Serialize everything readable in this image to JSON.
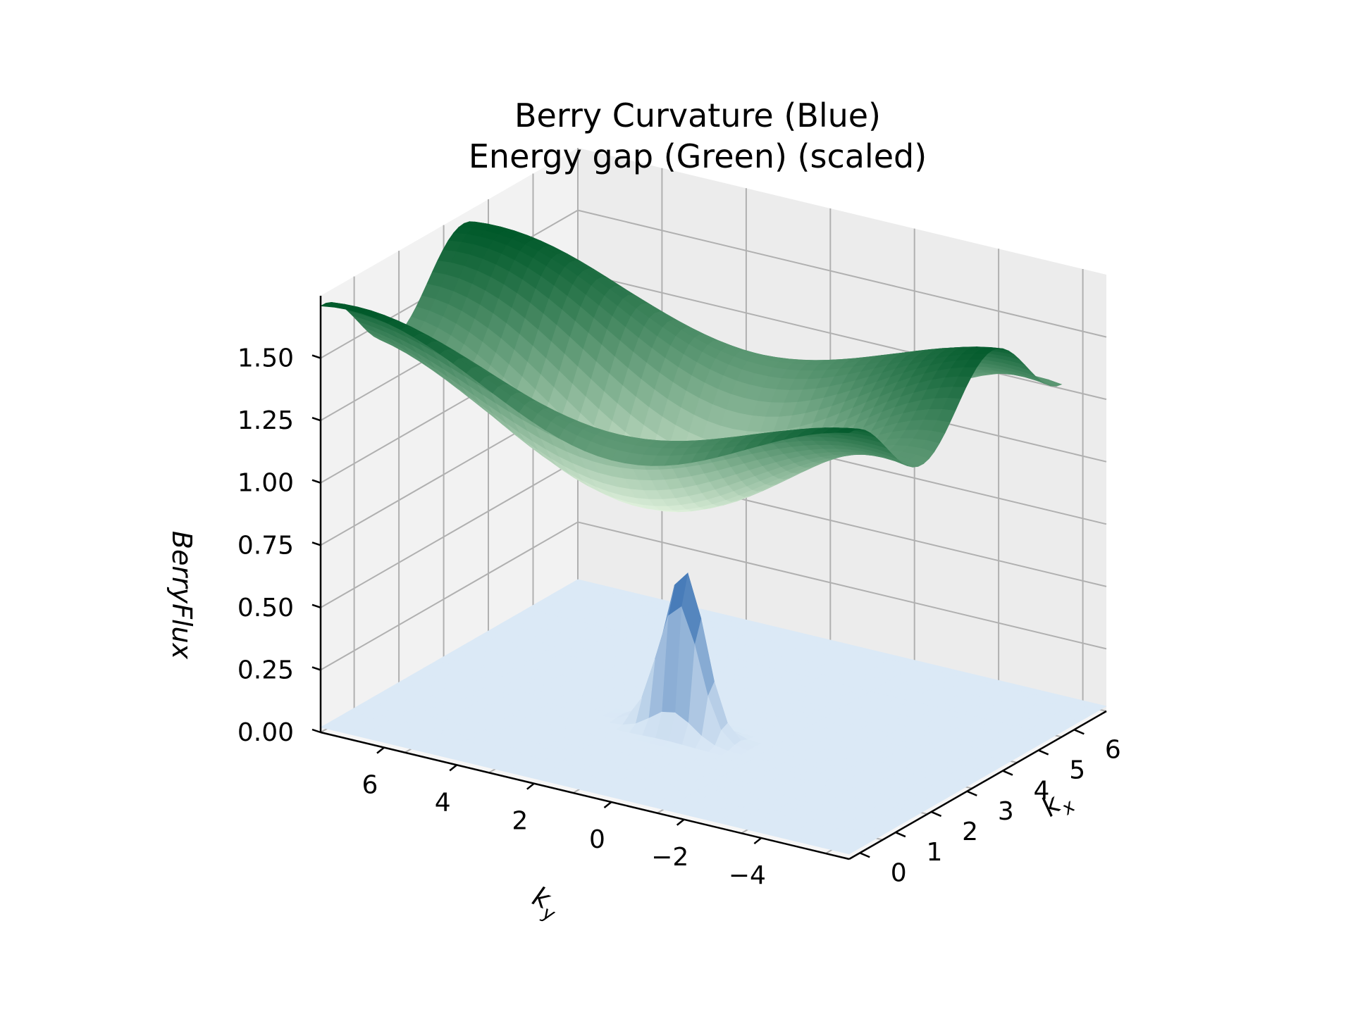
{
  "chart_data": {
    "type": "surface3d",
    "title": [
      "Berry Curvature (Blue)",
      "Energy gap (Green) (scaled)"
    ],
    "xlabel": "k_x",
    "ylabel": "k_y",
    "zlabel": "BerryFlux",
    "xlim": [
      0,
      6.28
    ],
    "ylim": [
      -4,
      7.5
    ],
    "zlim": [
      0,
      1.75
    ],
    "x_ticks": [
      "0",
      "1",
      "2",
      "3",
      "4",
      "5",
      "6"
    ],
    "y_ticks": [
      "6",
      "4",
      "2",
      "0",
      "−2",
      "−4"
    ],
    "z_ticks": [
      "0.00",
      "0.25",
      "0.50",
      "0.75",
      "1.00",
      "1.25",
      "1.50"
    ],
    "grid": true,
    "series": [
      {
        "name": "Berry Curvature (Blue)",
        "colormap": "Blues",
        "description_values": {
          "base_level": 0.02,
          "peak_value": 0.72,
          "peak_kx": 3.1,
          "peak_ky": 3.0
        }
      },
      {
        "name": "Energy gap (Green) (scaled)",
        "colormap": "Greens",
        "description_values": {
          "min_value": 0.95,
          "max_value": 1.72
        }
      }
    ],
    "colors": {
      "pane": "#f2f2f2",
      "grid": "#b0b0b0",
      "blue_light": "#dbe9f6",
      "blue_dark": "#1f5ea8",
      "green_light": "#e6f5e1",
      "green_dark": "#00592a"
    }
  }
}
